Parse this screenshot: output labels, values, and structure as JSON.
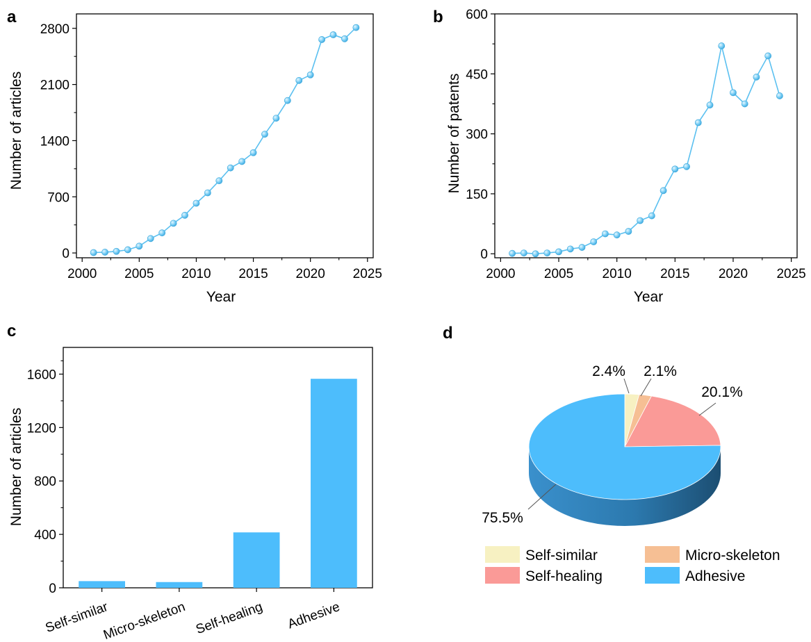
{
  "panels": [
    {
      "label": "a"
    },
    {
      "label": "b"
    },
    {
      "label": "c"
    },
    {
      "label": "d"
    }
  ],
  "colors": {
    "line": "#5BC0F0",
    "marker": "#5BC0F0",
    "bar": "#4DBDFC",
    "axis": "#000000",
    "pie": [
      "#F7F1C2",
      "#F6BF94",
      "#FA9A97",
      "#4DBDFC"
    ],
    "pie_side": [
      "#C9C29A",
      "#C8976F",
      "#C77370",
      "#2F7FB5"
    ]
  },
  "chart_data": [
    {
      "panel": "a",
      "type": "line",
      "xlabel": "Year",
      "ylabel": "Number of articles",
      "xlim": [
        1999.5,
        2025.5
      ],
      "ylim": [
        -60,
        2980
      ],
      "xticks": [
        2000,
        2005,
        2010,
        2015,
        2020,
        2025
      ],
      "yticks": [
        0,
        700,
        1400,
        2100,
        2800
      ],
      "x": [
        2001,
        2002,
        2003,
        2004,
        2005,
        2006,
        2007,
        2008,
        2009,
        2010,
        2011,
        2012,
        2013,
        2014,
        2015,
        2016,
        2017,
        2018,
        2019,
        2020,
        2021,
        2022,
        2023,
        2024
      ],
      "series": [
        {
          "values": [
            5,
            10,
            20,
            40,
            85,
            180,
            250,
            370,
            470,
            620,
            750,
            900,
            1060,
            1140,
            1250,
            1480,
            1680,
            1900,
            2150,
            2220,
            2660,
            2720,
            2670,
            2810
          ]
        }
      ]
    },
    {
      "panel": "b",
      "type": "line",
      "xlabel": "Year",
      "ylabel": "Number of patents",
      "xlim": [
        1999.5,
        2025.5
      ],
      "ylim": [
        -10,
        600
      ],
      "xticks": [
        2000,
        2005,
        2010,
        2015,
        2020,
        2025
      ],
      "yticks": [
        0,
        150,
        300,
        450,
        600
      ],
      "x": [
        2001,
        2002,
        2003,
        2004,
        2005,
        2006,
        2007,
        2008,
        2009,
        2010,
        2011,
        2012,
        2013,
        2014,
        2015,
        2016,
        2017,
        2018,
        2019,
        2020,
        2021,
        2022,
        2023,
        2024
      ],
      "series": [
        {
          "values": [
            1,
            2,
            0,
            2,
            5,
            12,
            16,
            30,
            50,
            47,
            56,
            83,
            95,
            158,
            212,
            218,
            328,
            372,
            520,
            403,
            375,
            442,
            495,
            395
          ]
        }
      ]
    },
    {
      "panel": "c",
      "type": "bar",
      "ylabel": "Number of articles",
      "ylim": [
        0,
        1800
      ],
      "yticks": [
        0,
        400,
        800,
        1200,
        1600
      ],
      "categories": [
        "Self-similar",
        "Micro-skeleton",
        "Self-healing",
        "Adhesive"
      ],
      "values": [
        50,
        43,
        415,
        1565
      ]
    },
    {
      "panel": "d",
      "type": "pie",
      "labels": [
        "Self-similar",
        "Micro-skeleton",
        "Self-healing",
        "Adhesive"
      ],
      "values": [
        2.4,
        2.1,
        20.1,
        75.5
      ],
      "value_labels": [
        "2.4%",
        "2.1%",
        "20.1%",
        "75.5%"
      ],
      "style": "3d",
      "legend": "bottom"
    }
  ]
}
